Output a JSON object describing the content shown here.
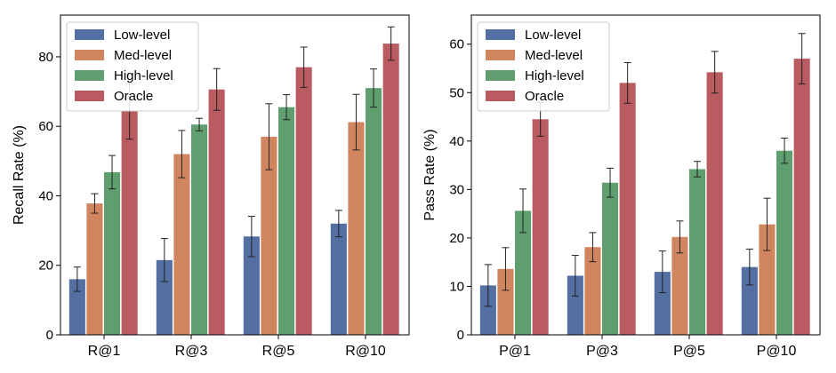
{
  "chart_data": [
    {
      "type": "bar",
      "categories": [
        "R@1",
        "R@3",
        "R@5",
        "R@10"
      ],
      "ylabel": "Recall Rate (%)",
      "xlabel": "",
      "ylim": [
        0,
        92
      ],
      "yticks": [
        0,
        20,
        40,
        60,
        80
      ],
      "legend_position": "top-left",
      "grid": false,
      "series": [
        {
          "name": "Low-level",
          "color": "#5470a3",
          "values": [
            16.0,
            21.5,
            28.3,
            32.0
          ],
          "errors": [
            3.5,
            6.2,
            5.8,
            3.8
          ]
        },
        {
          "name": "Med-level",
          "color": "#d0855f",
          "values": [
            37.8,
            52.0,
            57.0,
            61.2
          ],
          "errors": [
            2.8,
            6.8,
            9.5,
            8.0
          ]
        },
        {
          "name": "High-level",
          "color": "#5f9e6e",
          "values": [
            46.8,
            60.5,
            65.5,
            71.0
          ],
          "errors": [
            4.8,
            1.8,
            3.6,
            5.5
          ]
        },
        {
          "name": "Oracle",
          "color": "#b95b60",
          "values": [
            64.3,
            70.6,
            77.0,
            83.8
          ],
          "errors": [
            8.0,
            6.0,
            5.8,
            4.8
          ]
        }
      ]
    },
    {
      "type": "bar",
      "categories": [
        "P@1",
        "P@3",
        "P@5",
        "P@10"
      ],
      "ylabel": "Pass Rate (%)",
      "xlabel": "",
      "ylim": [
        0,
        66
      ],
      "yticks": [
        0,
        10,
        20,
        30,
        40,
        50,
        60
      ],
      "legend_position": "top-left",
      "grid": false,
      "series": [
        {
          "name": "Low-level",
          "color": "#5470a3",
          "values": [
            10.2,
            12.2,
            13.0,
            14.0
          ],
          "errors": [
            4.3,
            4.2,
            4.3,
            3.7
          ]
        },
        {
          "name": "Med-level",
          "color": "#d0855f",
          "values": [
            13.6,
            18.1,
            20.2,
            22.8
          ],
          "errors": [
            4.4,
            3.0,
            3.3,
            5.4
          ]
        },
        {
          "name": "High-level",
          "color": "#5f9e6e",
          "values": [
            25.6,
            31.4,
            34.2,
            38.0
          ],
          "errors": [
            4.5,
            3.0,
            1.6,
            2.6
          ]
        },
        {
          "name": "Oracle",
          "color": "#b95b60",
          "values": [
            44.5,
            52.0,
            54.2,
            57.0
          ],
          "errors": [
            3.5,
            4.2,
            4.3,
            5.2
          ]
        }
      ]
    }
  ]
}
